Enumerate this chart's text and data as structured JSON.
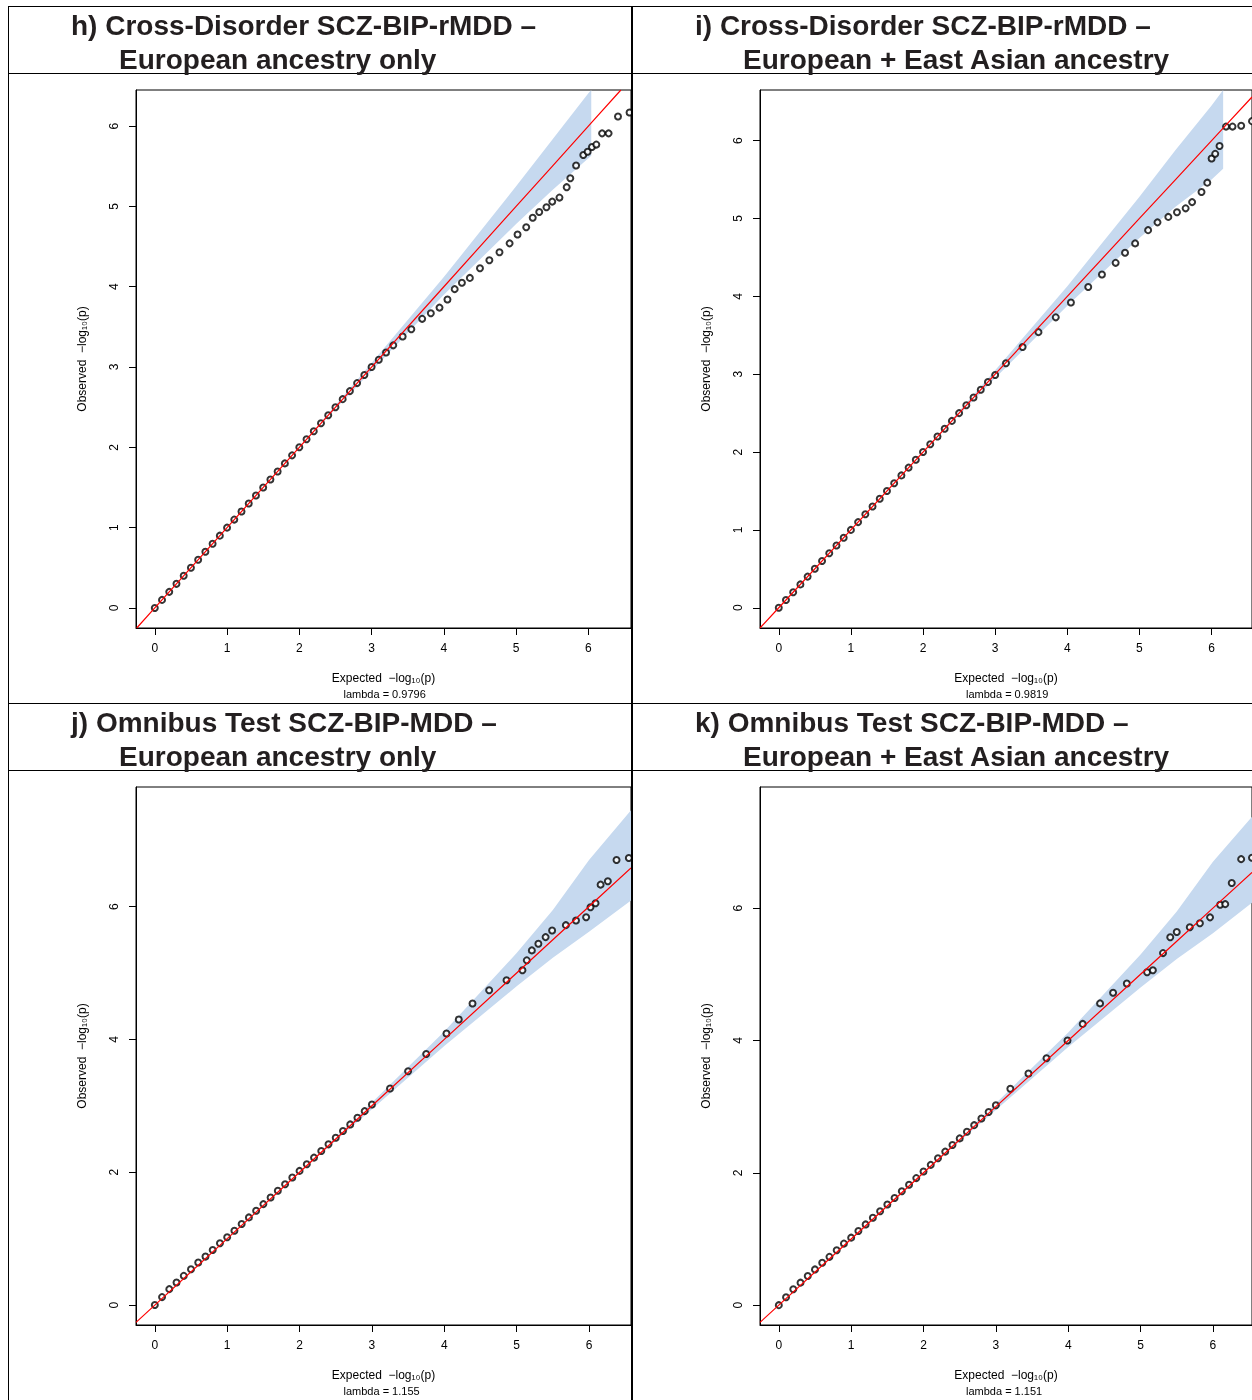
{
  "chart_data": [
    {
      "type": "scatter",
      "title": "h) Cross-Disorder SCZ-BIP-rMDD – European ancestry only",
      "xlabel": "Expected  −log₁₀(p)",
      "ylabel": "Observed  −log₁₀(p)",
      "annotations": [
        "lambda = 0.9796"
      ],
      "marker": "circle",
      "xlim": [
        -0.26,
        6.59
      ],
      "ylim": [
        -0.25,
        6.45
      ],
      "xticks": [
        0,
        1,
        2,
        3,
        4,
        5,
        6
      ],
      "yticks": [
        0,
        1,
        2,
        3,
        4,
        5,
        6
      ],
      "series": [
        {
          "color": "#000000",
          "x": [
            0,
            0.1,
            0.2,
            0.3,
            0.4,
            0.5,
            0.6,
            0.7,
            0.8,
            0.9,
            1,
            1.1,
            1.2,
            1.3,
            1.4,
            1.5,
            1.6,
            1.7,
            1.8,
            1.9,
            2,
            2.1,
            2.2,
            2.3,
            2.4,
            2.5,
            2.6,
            2.7,
            2.8,
            2.9,
            3,
            3.1,
            3.2,
            3.3,
            3.43,
            3.55,
            3.7,
            3.82,
            3.94,
            4.05,
            4.15,
            4.25,
            4.36,
            4.5,
            4.63,
            4.77,
            4.91,
            5.02,
            5.14,
            5.23,
            5.32,
            5.42,
            5.5,
            5.6,
            5.7,
            5.75,
            5.83,
            5.93,
            5.99,
            6.05,
            6.11,
            6.19,
            6.28,
            6.41,
            6.57
          ],
          "values": [
            0,
            0.1,
            0.2,
            0.3,
            0.4,
            0.5,
            0.6,
            0.7,
            0.8,
            0.9,
            1,
            1.1,
            1.2,
            1.3,
            1.4,
            1.5,
            1.6,
            1.7,
            1.8,
            1.9,
            2,
            2.1,
            2.2,
            2.3,
            2.4,
            2.5,
            2.6,
            2.7,
            2.8,
            2.9,
            3,
            3.09,
            3.18,
            3.27,
            3.38,
            3.47,
            3.6,
            3.67,
            3.74,
            3.84,
            3.97,
            4.05,
            4.11,
            4.23,
            4.33,
            4.43,
            4.54,
            4.65,
            4.74,
            4.86,
            4.93,
            4.99,
            5.06,
            5.11,
            5.24,
            5.35,
            5.51,
            5.64,
            5.68,
            5.74,
            5.77,
            5.91,
            5.91,
            6.12,
            6.17
          ]
        },
        {
          "type": "line",
          "marker": "none",
          "color": "#ff0000",
          "x": [
            -0.25,
            0,
            1,
            2,
            3,
            4,
            5,
            5.5,
            6,
            6.04,
            6.45
          ],
          "values": [
            -0.25,
            0,
            1,
            2,
            3,
            4,
            5,
            5.5,
            6,
            6.04,
            6.45
          ],
          "lower": [
            -0.25,
            0,
            1,
            2,
            2.95,
            3.9,
            4.78,
            5.2,
            5.6,
            5.63,
            null
          ],
          "upper": [
            -0.25,
            0,
            1,
            2,
            3.05,
            4.12,
            5.25,
            5.83,
            6.41,
            6.45,
            null
          ]
        }
      ]
    },
    {
      "type": "scatter",
      "title": "i) Cross-Disorder SCZ-BIP-rMDD – European + East Asian ancestry",
      "xlabel": "Expected  −log₁₀(p)",
      "ylabel": "Observed  −log₁₀(p)",
      "annotations": [
        "lambda = 0.9819"
      ],
      "marker": "circle",
      "xlim": [
        -0.26,
        6.56
      ],
      "ylim": [
        -0.26,
        6.65
      ],
      "xticks": [
        0,
        1,
        2,
        3,
        4,
        5,
        6
      ],
      "yticks": [
        0,
        1,
        2,
        3,
        4,
        5,
        6
      ],
      "series": [
        {
          "color": "#000000",
          "x": [
            0,
            0.1,
            0.2,
            0.3,
            0.4,
            0.5,
            0.6,
            0.7,
            0.8,
            0.9,
            1,
            1.1,
            1.2,
            1.3,
            1.4,
            1.5,
            1.6,
            1.7,
            1.8,
            1.9,
            2,
            2.1,
            2.2,
            2.3,
            2.4,
            2.5,
            2.6,
            2.7,
            2.8,
            2.9,
            3,
            3.15,
            3.38,
            3.6,
            3.84,
            4.05,
            4.29,
            4.48,
            4.67,
            4.8,
            4.94,
            5.12,
            5.25,
            5.4,
            5.52,
            5.64,
            5.73,
            5.86,
            5.94,
            6,
            6.05,
            6.11,
            6.2,
            6.29,
            6.41,
            6.56
          ],
          "values": [
            0,
            0.1,
            0.2,
            0.3,
            0.4,
            0.5,
            0.6,
            0.7,
            0.8,
            0.9,
            1,
            1.1,
            1.2,
            1.3,
            1.4,
            1.5,
            1.6,
            1.7,
            1.8,
            1.9,
            2,
            2.1,
            2.2,
            2.3,
            2.4,
            2.5,
            2.6,
            2.7,
            2.8,
            2.9,
            2.99,
            3.14,
            3.35,
            3.54,
            3.73,
            3.92,
            4.12,
            4.28,
            4.43,
            4.56,
            4.68,
            4.85,
            4.95,
            5.02,
            5.08,
            5.13,
            5.21,
            5.34,
            5.46,
            5.77,
            5.83,
            5.93,
            6.18,
            6.18,
            6.19,
            6.25
          ]
        },
        {
          "type": "line",
          "marker": "none",
          "color": "#ff0000",
          "x": [
            -0.26,
            0,
            1,
            2,
            3,
            4,
            5,
            5.5,
            6,
            6.16,
            6.56
          ],
          "values": [
            -0.26,
            0,
            1,
            2,
            3,
            4,
            5,
            5.5,
            6,
            6.16,
            6.56
          ],
          "lower": [
            -0.26,
            0,
            1,
            2,
            2.95,
            3.88,
            4.75,
            5.15,
            5.5,
            5.64,
            null
          ],
          "upper": [
            -0.26,
            0,
            1,
            2,
            3.05,
            4.13,
            5.28,
            5.88,
            6.45,
            6.65,
            null
          ]
        }
      ]
    },
    {
      "type": "scatter",
      "title": "j) Omnibus Test SCZ-BIP-MDD – European ancestry only",
      "xlabel": "Expected  −log₁₀(p)",
      "ylabel": "Observed  −log₁₀(p)",
      "annotations": [
        "lambda = 1.155"
      ],
      "marker": "circle",
      "xlim": [
        -0.26,
        6.58
      ],
      "ylim": [
        -0.3,
        7.8
      ],
      "xticks": [
        0,
        1,
        2,
        3,
        4,
        5,
        6
      ],
      "yticks": [
        0,
        2,
        4,
        6
      ],
      "series": [
        {
          "color": "#000000",
          "x": [
            0,
            0.1,
            0.2,
            0.3,
            0.4,
            0.5,
            0.6,
            0.7,
            0.8,
            0.9,
            1,
            1.1,
            1.2,
            1.3,
            1.4,
            1.5,
            1.6,
            1.7,
            1.8,
            1.9,
            2,
            2.1,
            2.2,
            2.3,
            2.4,
            2.5,
            2.6,
            2.7,
            2.8,
            2.9,
            3,
            3.25,
            3.5,
            3.75,
            4.03,
            4.2,
            4.39,
            4.62,
            4.86,
            5.08,
            5.14,
            5.21,
            5.3,
            5.4,
            5.49,
            5.68,
            5.82,
            5.96,
            6.02,
            6.09,
            6.16,
            6.26,
            6.38,
            6.55
          ],
          "values": [
            0,
            0.12,
            0.24,
            0.34,
            0.44,
            0.54,
            0.64,
            0.73,
            0.83,
            0.93,
            1.02,
            1.12,
            1.22,
            1.32,
            1.42,
            1.52,
            1.62,
            1.72,
            1.82,
            1.92,
            2.02,
            2.12,
            2.22,
            2.32,
            2.42,
            2.52,
            2.62,
            2.72,
            2.82,
            2.92,
            3.02,
            3.26,
            3.52,
            3.78,
            4.09,
            4.3,
            4.54,
            4.74,
            4.89,
            5.04,
            5.19,
            5.34,
            5.44,
            5.54,
            5.64,
            5.72,
            5.79,
            5.84,
            5.99,
            6.05,
            6.33,
            6.38,
            6.7,
            6.73
          ]
        },
        {
          "type": "line",
          "marker": "none",
          "color": "#ff0000",
          "x": [
            -0.26,
            0,
            1,
            2,
            3,
            4,
            5,
            5.5,
            6,
            6.58
          ],
          "values": [
            -0.26,
            0,
            1,
            2,
            3,
            4,
            5,
            5.5,
            6,
            6.58
          ],
          "lower": [
            -0.26,
            0,
            1,
            2,
            2.95,
            3.9,
            4.8,
            5.23,
            5.62,
            6.09
          ],
          "upper": [
            -0.26,
            0,
            1,
            2,
            3.05,
            4.12,
            5.3,
            5.95,
            6.7,
            7.45
          ]
        }
      ]
    },
    {
      "type": "scatter",
      "title": "k) Omnibus Test SCZ-BIP-MDD – European + East Asian ancestry",
      "xlabel": "Expected  −log₁₀(p)",
      "ylabel": "Observed  −log₁₀(p)",
      "annotations": [
        "lambda = 1.151"
      ],
      "marker": "circle",
      "xlim": [
        -0.26,
        6.54
      ],
      "ylim": [
        -0.3,
        7.83
      ],
      "xticks": [
        0,
        1,
        2,
        3,
        4,
        5,
        6
      ],
      "yticks": [
        0,
        2,
        4,
        6
      ],
      "series": [
        {
          "color": "#000000",
          "x": [
            0,
            0.1,
            0.2,
            0.3,
            0.4,
            0.5,
            0.6,
            0.7,
            0.8,
            0.9,
            1,
            1.1,
            1.2,
            1.3,
            1.4,
            1.5,
            1.6,
            1.7,
            1.8,
            1.9,
            2,
            2.1,
            2.2,
            2.3,
            2.4,
            2.5,
            2.6,
            2.7,
            2.8,
            2.9,
            3,
            3.2,
            3.45,
            3.7,
            3.99,
            4.2,
            4.44,
            4.62,
            4.81,
            5.09,
            5.17,
            5.31,
            5.41,
            5.5,
            5.68,
            5.82,
            5.96,
            6.1,
            6.17,
            6.26,
            6.39,
            6.54
          ],
          "values": [
            0,
            0.12,
            0.24,
            0.34,
            0.44,
            0.54,
            0.64,
            0.73,
            0.83,
            0.93,
            1.02,
            1.12,
            1.22,
            1.32,
            1.42,
            1.52,
            1.62,
            1.72,
            1.82,
            1.92,
            2.02,
            2.12,
            2.22,
            2.32,
            2.42,
            2.52,
            2.62,
            2.72,
            2.82,
            2.92,
            3.02,
            3.27,
            3.5,
            3.73,
            4,
            4.25,
            4.56,
            4.72,
            4.86,
            5.03,
            5.06,
            5.32,
            5.56,
            5.64,
            5.71,
            5.77,
            5.86,
            6.05,
            6.06,
            6.38,
            6.74,
            6.76
          ]
        },
        {
          "type": "line",
          "marker": "none",
          "color": "#ff0000",
          "x": [
            -0.26,
            0,
            1,
            2,
            3,
            4,
            5,
            5.5,
            6,
            6.54
          ],
          "values": [
            -0.26,
            0,
            1,
            2,
            3,
            4,
            5,
            5.5,
            6,
            6.54
          ],
          "lower": [
            -0.26,
            0,
            1,
            2,
            2.95,
            3.9,
            4.8,
            5.23,
            5.62,
            6.08
          ],
          "upper": [
            -0.26,
            0,
            1,
            2,
            3.05,
            4.12,
            5.3,
            5.95,
            6.7,
            7.38
          ]
        }
      ]
    }
  ]
}
